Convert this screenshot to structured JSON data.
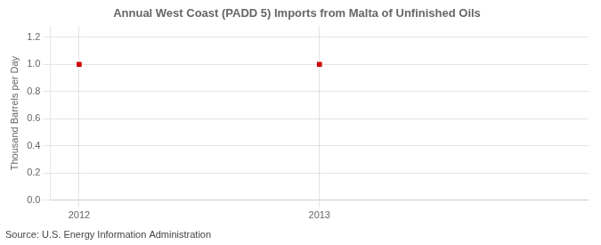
{
  "chart_data": {
    "type": "scatter",
    "title": "Annual West Coast (PADD 5) Imports from Malta of Unfinished Oils",
    "ylabel": "Thousand Barrels per Day",
    "source": "Source: U.S. Energy Information Administration",
    "x": [
      2012,
      2013
    ],
    "values": [
      1.0,
      1.0
    ],
    "color": "#cc0000",
    "marker": "square",
    "xlim": [
      2011.88,
      2014.12
    ],
    "xticks": [
      2012,
      2013
    ],
    "ylim": [
      0.0,
      1.28
    ],
    "yticks": [
      {
        "value": 0.0,
        "label": "0.0"
      },
      0.2,
      0.4,
      0.6,
      0.8,
      {
        "value": 1.0,
        "label": "1.0"
      },
      1.2
    ],
    "grid": true
  }
}
